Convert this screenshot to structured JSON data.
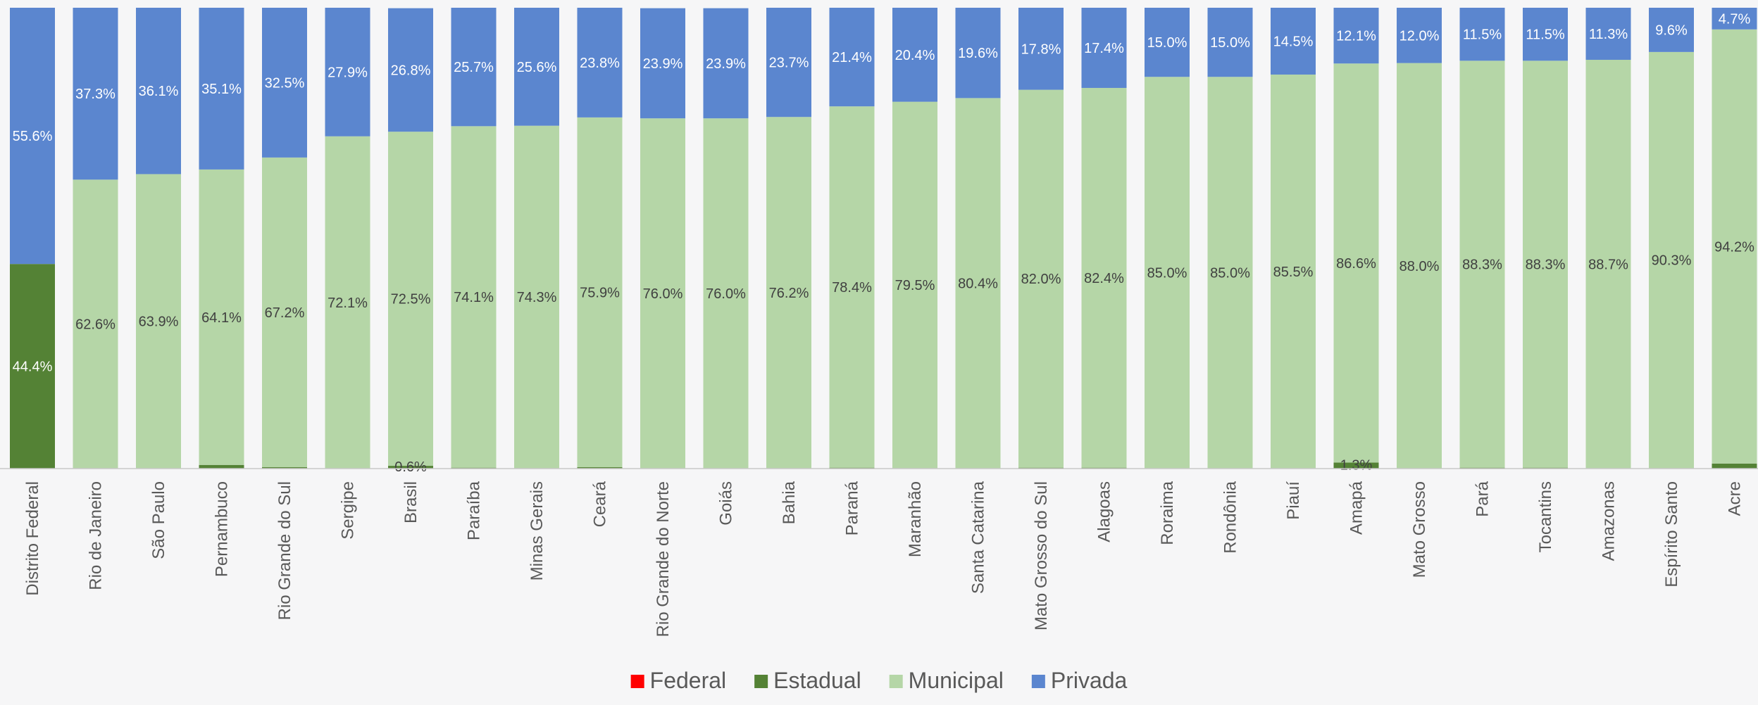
{
  "chart_data": {
    "type": "bar",
    "stacked": true,
    "normalized_percent": true,
    "categories": [
      "Distrito Federal",
      "Rio de Janeiro",
      "São Paulo",
      "Pernambuco",
      "Rio Grande do Sul",
      "Sergipe",
      "Brasil",
      "Paraíba",
      "Minas Gerais",
      "Ceará",
      "Rio Grande do Norte",
      "Goiás",
      "Bahia",
      "Paraná",
      "Maranhão",
      "Santa Catarina",
      "Mato Grosso do Sul",
      "Alagoas",
      "Roraima",
      "Rondônia",
      "Piauí",
      "Amapá",
      "Mato Grosso",
      "Pará",
      "Tocantins",
      "Amazonas",
      "Espírito Santo",
      "Acre"
    ],
    "series": [
      {
        "name": "Federal",
        "color": "#ff0000",
        "values": [
          0,
          0,
          0,
          0,
          0,
          0,
          0,
          0,
          0,
          0,
          0,
          0,
          0,
          0,
          0,
          0,
          0,
          0,
          0,
          0,
          0,
          0,
          0,
          0,
          0,
          0,
          0,
          0
        ],
        "labels": [
          "",
          "",
          "",
          "",
          "",
          "",
          "",
          "",
          "",
          "",
          "",
          "",
          "",
          "",
          "",
          "",
          "",
          "",
          "",
          "",
          "",
          "",
          "",
          "",
          "",
          "",
          "",
          ""
        ]
      },
      {
        "name": "Estadual",
        "color": "#548235",
        "values": [
          44.4,
          0.1,
          0,
          0.8,
          0.3,
          0,
          0.6,
          0.2,
          0.1,
          0.3,
          0,
          0,
          0.1,
          0.2,
          0.1,
          0,
          0.2,
          0.2,
          0,
          0,
          0,
          1.3,
          0,
          0.2,
          0.2,
          0,
          0.1,
          1.1
        ],
        "labels": [
          "44.4%",
          "",
          "",
          "",
          "",
          "",
          "0.6%",
          "",
          "",
          "",
          "",
          "",
          "",
          "",
          "",
          "",
          "",
          "",
          "",
          "",
          "",
          "1.3%",
          "",
          "",
          "",
          "",
          "",
          ""
        ]
      },
      {
        "name": "Municipal",
        "color": "#b5d6a7",
        "values": [
          0,
          62.6,
          63.9,
          64.1,
          67.2,
          72.1,
          72.5,
          74.1,
          74.3,
          75.9,
          76.0,
          76.0,
          76.2,
          78.4,
          79.5,
          80.4,
          82.0,
          82.4,
          85.0,
          85.0,
          85.5,
          86.6,
          88.0,
          88.3,
          88.3,
          88.7,
          90.3,
          94.2
        ],
        "labels": [
          "",
          "62.6%",
          "63.9%",
          "64.1%",
          "67.2%",
          "72.1%",
          "72.5%",
          "74.1%",
          "74.3%",
          "75.9%",
          "76.0%",
          "76.0%",
          "76.2%",
          "78.4%",
          "79.5%",
          "80.4%",
          "82.0%",
          "82.4%",
          "85.0%",
          "85.0%",
          "85.5%",
          "86.6%",
          "88.0%",
          "88.3%",
          "88.3%",
          "88.7%",
          "90.3%",
          "94.2%"
        ]
      },
      {
        "name": "Privada",
        "color": "#5b86cf",
        "values": [
          55.6,
          37.3,
          36.1,
          35.1,
          32.5,
          27.9,
          26.8,
          25.7,
          25.6,
          23.8,
          23.9,
          23.9,
          23.7,
          21.4,
          20.4,
          19.6,
          17.8,
          17.4,
          15.0,
          15.0,
          14.5,
          12.1,
          12.0,
          11.5,
          11.5,
          11.3,
          9.6,
          4.7
        ],
        "labels": [
          "55.6%",
          "37.3%",
          "36.1%",
          "35.1%",
          "32.5%",
          "27.9%",
          "26.8%",
          "25.7%",
          "25.6%",
          "23.8%",
          "23.9%",
          "23.9%",
          "23.7%",
          "21.4%",
          "20.4%",
          "19.6%",
          "17.8%",
          "17.4%",
          "15.0%",
          "15.0%",
          "14.5%",
          "12.1%",
          "12.0%",
          "11.5%",
          "11.5%",
          "11.3%",
          "9.6%",
          "4.7%"
        ]
      }
    ],
    "ylim": [
      0,
      100
    ],
    "legend_position": "bottom",
    "grid": false
  }
}
